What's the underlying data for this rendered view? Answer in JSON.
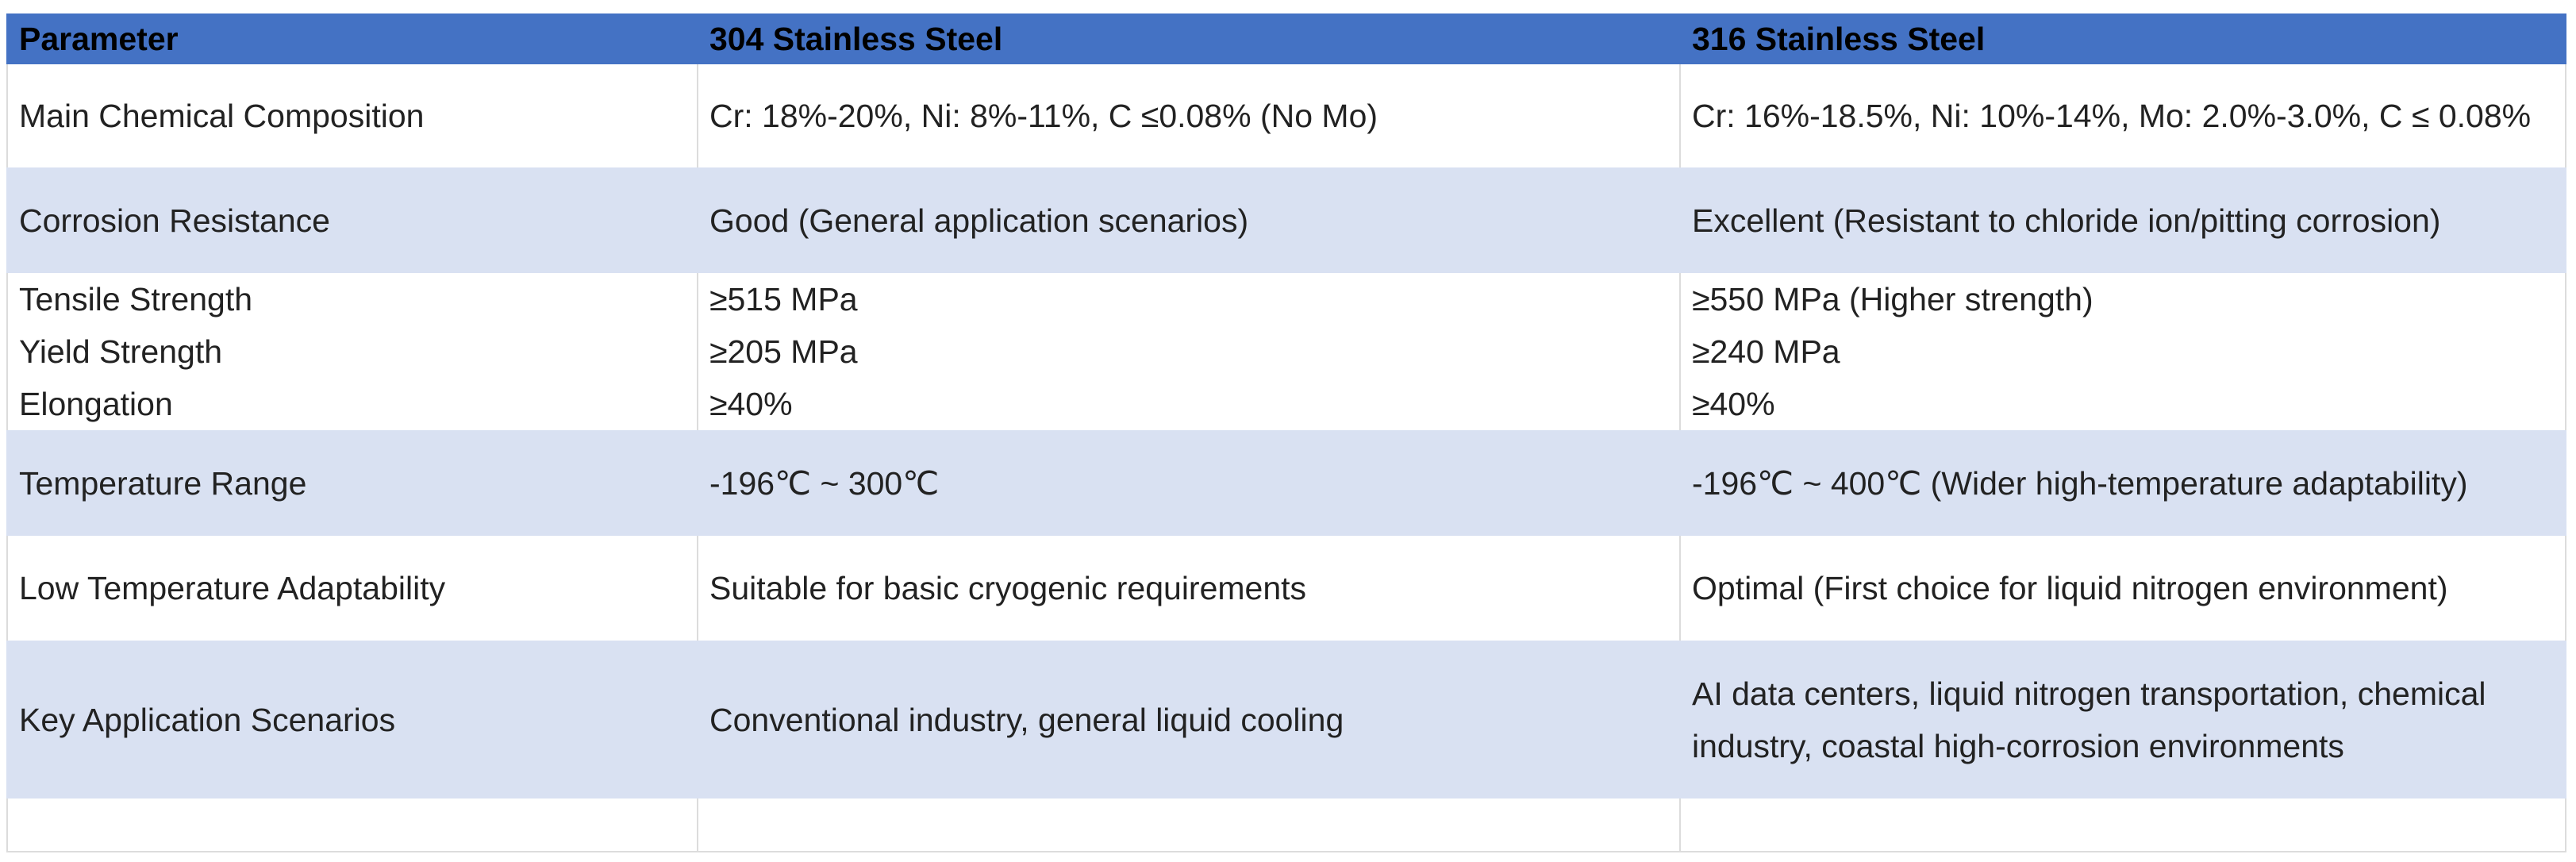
{
  "table": {
    "headers": [
      "Parameter",
      "304 Stainless Steel",
      "316 Stainless Steel"
    ],
    "rows": [
      [
        "Main Chemical Composition",
        "Cr: 18%-20%, Ni: 8%-11%, C ≤0.08% (No Mo)",
        "Cr: 16%-18.5%, Ni: 10%-14%, Mo: 2.0%-3.0%, C ≤ 0.08%"
      ],
      [
        "Corrosion Resistance",
        "Good (General application scenarios)",
        "Excellent (Resistant to chloride ion/pitting corrosion)"
      ],
      [
        "Tensile Strength",
        "≥515 MPa",
        "≥550 MPa (Higher strength)"
      ],
      [
        "Yield Strength",
        "≥205 MPa",
        "≥240 MPa"
      ],
      [
        "Elongation",
        "≥40%",
        "≥40%"
      ],
      [
        "Temperature Range",
        "-196℃ ~ 300℃",
        "-196℃ ~ 400℃ (Wider high-temperature adaptability)"
      ],
      [
        "Low Temperature Adaptability",
        "Suitable for basic cryogenic requirements",
        "Optimal (First choice for liquid nitrogen environment)"
      ],
      [
        "Key Application Scenarios",
        "Conventional industry, general liquid cooling",
        "AI data centers, liquid nitrogen transportation, chemical industry, coastal high-corrosion environments"
      ],
      [
        "",
        "",
        ""
      ]
    ]
  },
  "colors": {
    "header": "#4472C4",
    "band": "#D9E1F2"
  }
}
